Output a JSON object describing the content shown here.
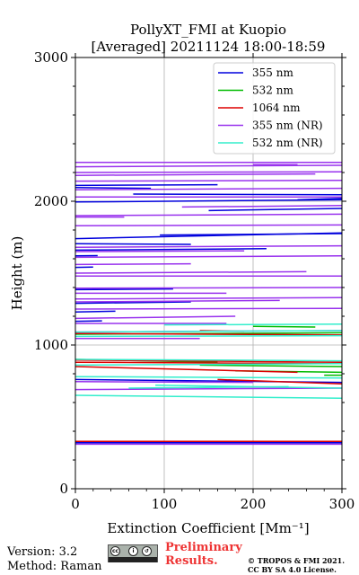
{
  "chart_data": {
    "type": "line",
    "title": "PollyXT_FMI at Kuopio",
    "subtitle": "[Averaged] 20211124 18:00-18:59",
    "xlabel": "Extinction Coefficient [Mm⁻¹]",
    "ylabel": "Height (m)",
    "xlim": [
      0,
      300
    ],
    "ylim": [
      0,
      3000
    ],
    "xticks": [
      0,
      100,
      200,
      300
    ],
    "yticks": [
      0,
      1000,
      2000,
      3000
    ],
    "grid": true,
    "legend_position": "top-right",
    "series": [
      {
        "name": "355 nm",
        "color": "#0000dd",
        "segments": [
          [
            [
              0,
              320
            ],
            [
              300,
              320
            ]
          ],
          [
            [
              0,
              760
            ],
            [
              300,
              740
            ]
          ],
          [
            [
              0,
              1165
            ],
            [
              30,
              1168
            ]
          ],
          [
            [
              0,
              1230
            ],
            [
              45,
              1235
            ]
          ],
          [
            [
              0,
              1290
            ],
            [
              130,
              1300
            ]
          ],
          [
            [
              0,
              1385
            ],
            [
              110,
              1390
            ]
          ],
          [
            [
              0,
              1540
            ],
            [
              20,
              1542
            ]
          ],
          [
            [
              0,
              1620
            ],
            [
              25,
              1622
            ]
          ],
          [
            [
              0,
              1660
            ],
            [
              215,
              1670
            ]
          ],
          [
            [
              0,
              1705
            ],
            [
              130,
              1700
            ]
          ],
          [
            [
              0,
              1740
            ],
            [
              300,
              1780
            ]
          ],
          [
            [
              95,
              1765
            ],
            [
              300,
              1775
            ]
          ],
          [
            [
              150,
              1935
            ],
            [
              300,
              1950
            ]
          ],
          [
            [
              0,
              1995
            ],
            [
              300,
              2010
            ]
          ],
          [
            [
              65,
              2050
            ],
            [
              300,
              2045
            ]
          ],
          [
            [
              0,
              2095
            ],
            [
              85,
              2090
            ]
          ],
          [
            [
              0,
              2110
            ],
            [
              160,
              2115
            ]
          ],
          [
            [
              250,
              2010
            ],
            [
              300,
              2020
            ]
          ]
        ]
      },
      {
        "name": "532 nm",
        "color": "#00bb00",
        "segments": [
          [
            [
              0,
              1075
            ],
            [
              300,
              1085
            ]
          ],
          [
            [
              200,
              1130
            ],
            [
              270,
              1125
            ]
          ],
          [
            [
              0,
              900
            ],
            [
              160,
              880
            ]
          ],
          [
            [
              140,
              860
            ],
            [
              300,
              850
            ]
          ],
          [
            [
              180,
              820
            ],
            [
              300,
              810
            ]
          ],
          [
            [
              280,
              790
            ],
            [
              300,
              790
            ]
          ]
        ]
      },
      {
        "name": "1064 nm",
        "color": "#dd0000",
        "segments": [
          [
            [
              0,
              330
            ],
            [
              300,
              330
            ]
          ],
          [
            [
              0,
              895
            ],
            [
              300,
              880
            ]
          ],
          [
            [
              0,
              880
            ],
            [
              300,
              870
            ]
          ],
          [
            [
              0,
              850
            ],
            [
              250,
              810
            ]
          ],
          [
            [
              140,
              1100
            ],
            [
              190,
              1095
            ]
          ],
          [
            [
              0,
              1080
            ],
            [
              300,
              1070
            ]
          ],
          [
            [
              160,
              760
            ],
            [
              300,
              730
            ]
          ]
        ]
      },
      {
        "name": "355 nm (NR)",
        "color": "#9933ee",
        "segments": [
          [
            [
              0,
              310
            ],
            [
              300,
              310
            ]
          ],
          [
            [
              0,
              690
            ],
            [
              300,
              700
            ]
          ],
          [
            [
              0,
              745
            ],
            [
              200,
              740
            ]
          ],
          [
            [
              0,
              1045
            ],
            [
              140,
              1045
            ]
          ],
          [
            [
              0,
              1090
            ],
            [
              300,
              1100
            ]
          ],
          [
            [
              0,
              1150
            ],
            [
              170,
              1150
            ]
          ],
          [
            [
              0,
              1185
            ],
            [
              180,
              1200
            ]
          ],
          [
            [
              0,
              1250
            ],
            [
              300,
              1255
            ]
          ],
          [
            [
              0,
              1300
            ],
            [
              230,
              1310
            ]
          ],
          [
            [
              0,
              1320
            ],
            [
              300,
              1330
            ]
          ],
          [
            [
              0,
              1360
            ],
            [
              170,
              1360
            ]
          ],
          [
            [
              0,
              1395
            ],
            [
              300,
              1400
            ]
          ],
          [
            [
              0,
              1480
            ],
            [
              300,
              1480
            ]
          ],
          [
            [
              0,
              1500
            ],
            [
              260,
              1510
            ]
          ],
          [
            [
              0,
              1560
            ],
            [
              130,
              1565
            ]
          ],
          [
            [
              0,
              1610
            ],
            [
              300,
              1620
            ]
          ],
          [
            [
              0,
              1650
            ],
            [
              190,
              1655
            ]
          ],
          [
            [
              0,
              1680
            ],
            [
              300,
              1690
            ]
          ],
          [
            [
              0,
              1830
            ],
            [
              300,
              1835
            ]
          ],
          [
            [
              0,
              1890
            ],
            [
              55,
              1890
            ]
          ],
          [
            [
              0,
              1900
            ],
            [
              300,
              1910
            ]
          ],
          [
            [
              120,
              1960
            ],
            [
              300,
              1970
            ]
          ],
          [
            [
              0,
              2030
            ],
            [
              300,
              2030
            ]
          ],
          [
            [
              0,
              2080
            ],
            [
              300,
              2090
            ]
          ],
          [
            [
              0,
              2140
            ],
            [
              300,
              2145
            ]
          ],
          [
            [
              0,
              2180
            ],
            [
              270,
              2190
            ]
          ],
          [
            [
              0,
              2200
            ],
            [
              300,
              2205
            ]
          ],
          [
            [
              0,
              2240
            ],
            [
              300,
              2250
            ]
          ],
          [
            [
              200,
              2255
            ],
            [
              250,
              2255
            ]
          ],
          [
            [
              0,
              2270
            ],
            [
              300,
              2270
            ]
          ]
        ]
      },
      {
        "name": "532 nm (NR)",
        "color": "#33eecc",
        "segments": [
          [
            [
              0,
              650
            ],
            [
              300,
              630
            ]
          ],
          [
            [
              60,
              700
            ],
            [
              240,
              710
            ]
          ],
          [
            [
              0,
              780
            ],
            [
              300,
              770
            ]
          ],
          [
            [
              90,
              720
            ],
            [
              300,
              700
            ]
          ],
          [
            [
              0,
              860
            ],
            [
              300,
              870
            ]
          ],
          [
            [
              0,
              900
            ],
            [
              300,
              890
            ]
          ],
          [
            [
              0,
              1060
            ],
            [
              300,
              1065
            ]
          ],
          [
            [
              0,
              1090
            ],
            [
              300,
              1100
            ]
          ],
          [
            [
              100,
              1140
            ],
            [
              300,
              1145
            ]
          ]
        ]
      }
    ]
  },
  "footer": {
    "version": "Version: 3.2",
    "method": "Method: Raman",
    "preliminary_line1": "Preliminary",
    "preliminary_line2": "Results.",
    "copyright_line1": "© TROPOS & FMI 2021.",
    "copyright_line2": "CC BY SA 4.0 License."
  },
  "icons": {
    "license_badge": "cc-by-sa-badge"
  }
}
